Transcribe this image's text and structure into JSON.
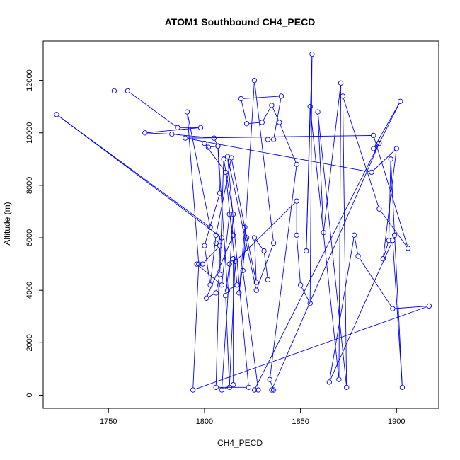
{
  "chart_data": {
    "type": "line",
    "title": "ATOM1 Southbound CH4_PECD",
    "xlabel": "CH4_PECD",
    "ylabel": "Altitude (m)",
    "xlim": [
      1716,
      1922
    ],
    "ylim": [
      -500,
      13500
    ],
    "xticks": [
      1750,
      1800,
      1850,
      1900
    ],
    "yticks": [
      0,
      2000,
      4000,
      6000,
      8000,
      10000,
      12000
    ],
    "grid": false,
    "color": "#0000ff",
    "series": [
      {
        "points": [
          [
            1753,
            11600
          ],
          [
            1760,
            11600
          ],
          [
            1786,
            10200
          ],
          [
            1798,
            10200
          ],
          [
            1769,
            10000
          ],
          [
            1783,
            9950
          ],
          [
            1805,
            9800
          ],
          [
            1807,
            9500
          ],
          [
            1802,
            9450
          ],
          [
            1800,
            9600
          ],
          [
            1811,
            8500
          ],
          [
            1817,
            4200
          ],
          [
            1812,
            4000
          ],
          [
            1807,
            9500
          ],
          [
            1808,
            7700
          ],
          [
            1800,
            5700
          ],
          [
            1803,
            4200
          ],
          [
            1806,
            6100
          ],
          [
            1814,
            9050
          ],
          [
            1822,
            6000
          ],
          [
            1818,
            3900
          ],
          [
            1821,
            6400
          ],
          [
            1827,
            4300
          ],
          [
            1826,
            6000
          ],
          [
            1831,
            5500
          ],
          [
            1833,
            4400
          ],
          [
            1833,
            9750
          ],
          [
            1836,
            9750
          ],
          [
            1840,
            11400
          ],
          [
            1819,
            11300
          ],
          [
            1822,
            10350
          ],
          [
            1830,
            10400
          ],
          [
            1835,
            11050
          ],
          [
            1839,
            10400
          ],
          [
            1848,
            8800
          ],
          [
            1834,
            600
          ],
          [
            1836,
            200
          ],
          [
            1835,
            200
          ],
          [
            1891,
            9600
          ],
          [
            1888,
            9400
          ],
          [
            1902,
            11200
          ],
          [
            1826,
            200
          ],
          [
            1828,
            200
          ],
          [
            1820,
            4750
          ],
          [
            1826,
            12000
          ],
          [
            1836,
            5800
          ],
          [
            1827,
            4000
          ],
          [
            1812,
            9100
          ],
          [
            1823,
            300
          ],
          [
            1806,
            300
          ],
          [
            1808,
            5700
          ],
          [
            1799,
            5000
          ],
          [
            1796,
            5000
          ],
          [
            1809,
            4200
          ],
          [
            1813,
            6900
          ],
          [
            1815,
            6100
          ],
          [
            1801,
            3700
          ],
          [
            1806,
            3900
          ],
          [
            1808,
            4600
          ],
          [
            1810,
            9000
          ],
          [
            1815,
            6900
          ],
          [
            1809,
            200
          ],
          [
            1815,
            400
          ],
          [
            1815,
            5200
          ],
          [
            1813,
            5000
          ],
          [
            1811,
            3800
          ],
          [
            1813,
            300
          ],
          [
            1816,
            5100
          ],
          [
            1848,
            7400
          ],
          [
            1848,
            6100
          ],
          [
            1850,
            4200
          ],
          [
            1855,
            3500
          ],
          [
            1856,
            13000
          ],
          [
            1853,
            5500
          ],
          [
            1855,
            11000
          ],
          [
            1870,
            600
          ],
          [
            1871,
            11900
          ],
          [
            1862,
            6200
          ],
          [
            1859,
            10800
          ],
          [
            1874,
            300
          ],
          [
            1872,
            11400
          ],
          [
            1891,
            7100
          ],
          [
            1906,
            5600
          ],
          [
            1888,
            9900
          ],
          [
            1790,
            9800
          ],
          [
            1887,
            8500
          ],
          [
            1900,
            9400
          ],
          [
            1893,
            5200
          ],
          [
            1896,
            5900
          ],
          [
            1897,
            9000
          ],
          [
            1899,
            6100
          ],
          [
            1903,
            300
          ],
          [
            1898,
            5900
          ],
          [
            1865,
            500
          ],
          [
            1878,
            6100
          ],
          [
            1880,
            5300
          ],
          [
            1898,
            3300
          ],
          [
            1917,
            3400
          ],
          [
            1794,
            200
          ],
          [
            1797,
            5000
          ],
          [
            1791,
            10800
          ],
          [
            1803,
            6400
          ],
          [
            1723,
            10700
          ],
          [
            1809,
            6000
          ],
          [
            1806,
            5800
          ],
          [
            1809,
            6000
          ]
        ]
      }
    ]
  }
}
